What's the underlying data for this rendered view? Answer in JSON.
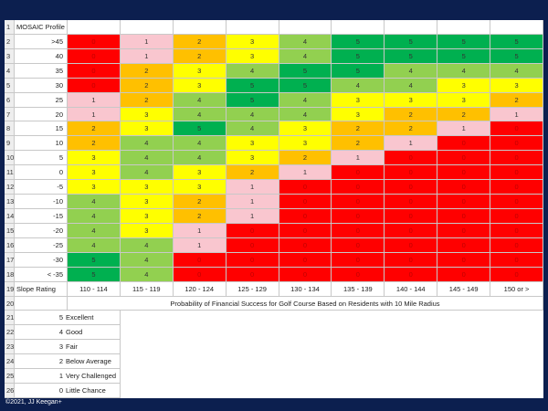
{
  "sheet": {
    "header_label": "MOSAIC Profile",
    "row_numbers": [
      1,
      2,
      3,
      4,
      5,
      6,
      7,
      8,
      9,
      10,
      11,
      12,
      13,
      14,
      15,
      16,
      17,
      18,
      19,
      20,
      21,
      22,
      23,
      24,
      25,
      26
    ],
    "score_colors": [
      "#ff0000",
      "#f9c6cf",
      "#ffc000",
      "#ffff00",
      "#92d050",
      "#00b050"
    ],
    "profiles": [
      ">45",
      "40",
      "35",
      "30",
      "25",
      "20",
      "15",
      "10",
      "5",
      "0",
      "-5",
      "-10",
      "-15",
      "-20",
      "-25",
      "-30",
      "< -35"
    ],
    "scores": [
      [
        0,
        1,
        2,
        3,
        4,
        5,
        5,
        5,
        5
      ],
      [
        0,
        1,
        2,
        3,
        4,
        5,
        5,
        5,
        5
      ],
      [
        0,
        2,
        3,
        4,
        5,
        5,
        4,
        4,
        4
      ],
      [
        0,
        2,
        3,
        5,
        5,
        4,
        4,
        3,
        3
      ],
      [
        1,
        2,
        4,
        5,
        4,
        3,
        3,
        3,
        2
      ],
      [
        1,
        3,
        4,
        4,
        4,
        3,
        2,
        2,
        1
      ],
      [
        2,
        3,
        5,
        4,
        3,
        2,
        2,
        1,
        0
      ],
      [
        2,
        4,
        4,
        3,
        3,
        2,
        1,
        0,
        0
      ],
      [
        3,
        4,
        4,
        3,
        2,
        1,
        0,
        0,
        0
      ],
      [
        3,
        4,
        3,
        2,
        1,
        0,
        0,
        0,
        0
      ],
      [
        3,
        3,
        3,
        1,
        0,
        0,
        0,
        0,
        0
      ],
      [
        4,
        3,
        2,
        1,
        0,
        0,
        0,
        0,
        0
      ],
      [
        4,
        3,
        2,
        1,
        0,
        0,
        0,
        0,
        0
      ],
      [
        4,
        3,
        1,
        0,
        0,
        0,
        0,
        0,
        0
      ],
      [
        4,
        4,
        1,
        0,
        0,
        0,
        0,
        0,
        0
      ],
      [
        5,
        4,
        0,
        0,
        0,
        0,
        0,
        0,
        0
      ],
      [
        5,
        4,
        0,
        0,
        0,
        0,
        0,
        0,
        0
      ]
    ],
    "slope_label": "Slope Rating",
    "slope_ratings": [
      "110 - 114",
      "115 - 119",
      "120 - 124",
      "125 - 129",
      "130 - 134",
      "135 - 139",
      "140 - 144",
      "145 - 149",
      "150 or >"
    ],
    "caption": "Probability of Financial Success for Golf Course Based on Residents with 10 Mile Radius",
    "legend": [
      {
        "score": 5,
        "label": "Excellent"
      },
      {
        "score": 4,
        "label": "Good"
      },
      {
        "score": 3,
        "label": "Fair"
      },
      {
        "score": 2,
        "label": "Below Average"
      },
      {
        "score": 1,
        "label": "Very Challenged"
      },
      {
        "score": 0,
        "label": "Little Chance"
      }
    ]
  },
  "footer": "©2021, JJ Keegan+"
}
